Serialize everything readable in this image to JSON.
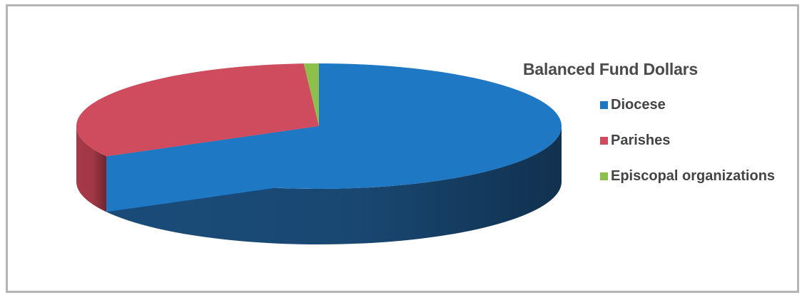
{
  "chart_data": {
    "type": "pie",
    "style": "3d",
    "title": "Balanced Fund Dollars",
    "legend_position": "right",
    "categories": [
      "Diocese",
      "Parishes",
      "Episcopal organizations"
    ],
    "values": [
      67,
      32,
      1
    ],
    "colors": [
      "#1f78c4",
      "#cf4c5e",
      "#8cc04a"
    ],
    "side_colors": [
      "#1a4b78",
      "#a83a48",
      "#6a9a3a"
    ]
  }
}
